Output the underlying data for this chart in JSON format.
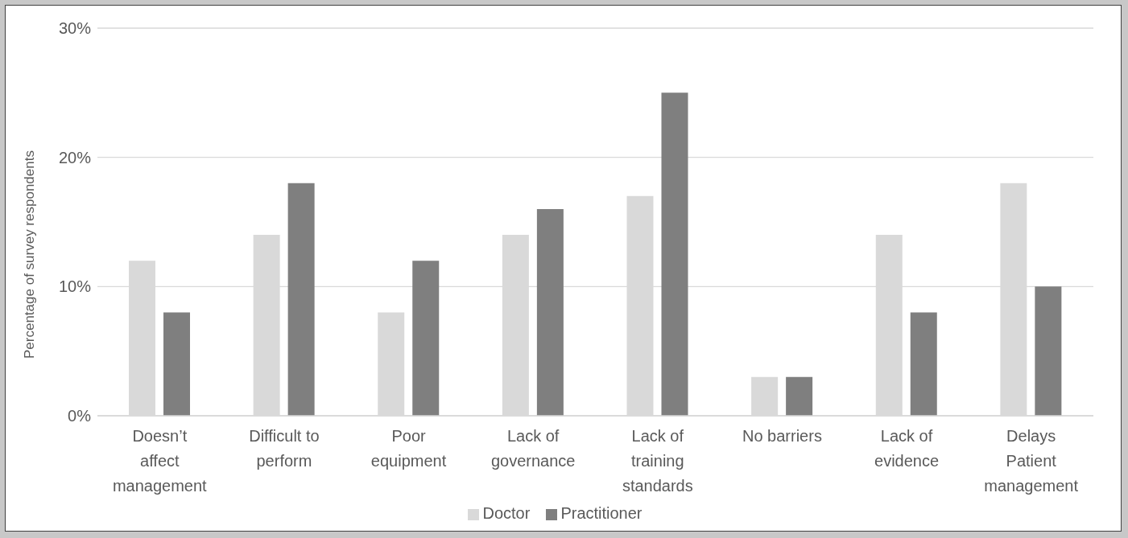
{
  "chart_data": {
    "type": "bar",
    "ylabel": "Percentage of survey respondents",
    "categories": [
      "Doesn’t affect management",
      "Difficult to perform",
      "Poor equipment",
      "Lack of governance",
      "Lack of training standards",
      "No barriers",
      "Lack of evidence",
      "Delays Patient management"
    ],
    "series": [
      {
        "name": "Doctor",
        "color": "#d9d9d9",
        "values": [
          12,
          14,
          8,
          14,
          17,
          3,
          14,
          18
        ]
      },
      {
        "name": "Practitioner",
        "color": "#7f7f7f",
        "values": [
          8,
          18,
          12,
          16,
          25,
          3,
          8,
          10
        ]
      }
    ],
    "ylim": [
      0,
      30
    ],
    "yticks": [
      {
        "value": 0,
        "label": "0%"
      },
      {
        "value": 10,
        "label": "10%"
      },
      {
        "value": 20,
        "label": "20%"
      },
      {
        "value": 30,
        "label": "30%"
      }
    ],
    "grid": "y",
    "legend": "bottom"
  }
}
